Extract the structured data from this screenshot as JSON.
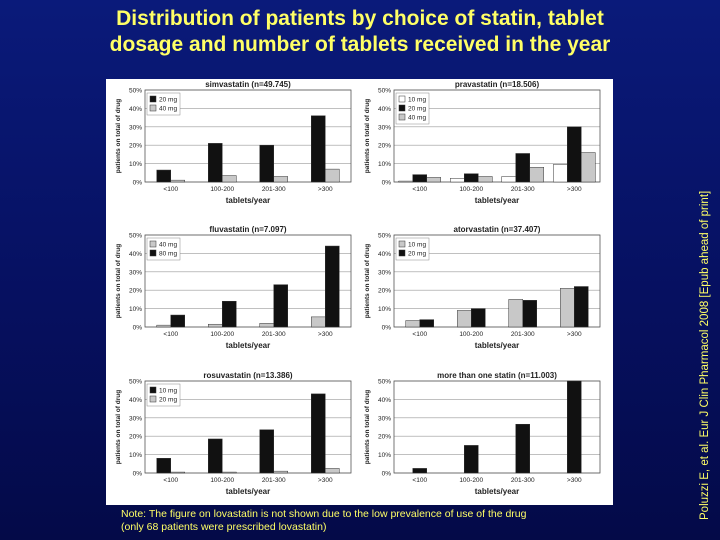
{
  "slide": {
    "title_line1": "Distribution of patients by choice of statin, tablet",
    "title_line2": "dosage and number of tablets received in the year",
    "note_line1": "Note: The figure on lovastatin is not shown due to the low prevalence of use of the drug",
    "note_line2": "(only 68 patients were prescribed lovastatin)",
    "citation": "Poluzzi E, et al. Eur J Clin Pharmacol 2008 [Epub ahead of print]"
  },
  "colors": {
    "background": "#061060",
    "title": "#ffff66",
    "panel": "#ffffff",
    "dose_white": "#ffffff",
    "dose_black": "#111111",
    "dose_gray": "#c8c8c8"
  },
  "chart_data": [
    {
      "type": "bar",
      "title": "simvastatin (n=49.745)",
      "xlabel": "tablets/year",
      "ylabel": "patients on total of drug",
      "categories": [
        "<100",
        "100-200",
        "201-300",
        ">300"
      ],
      "yticks": [
        "0%",
        "10%",
        "20%",
        "30%",
        "40%",
        "50%"
      ],
      "ylim": [
        0,
        50
      ],
      "legend_position": "top-left",
      "series": [
        {
          "name": "20 mg",
          "color": "#111111",
          "values": [
            6.5,
            21,
            20,
            36
          ]
        },
        {
          "name": "40 mg",
          "color": "#c8c8c8",
          "values": [
            1,
            3.5,
            3,
            7
          ]
        }
      ]
    },
    {
      "type": "bar",
      "title": "pravastatin (n=18.506)",
      "xlabel": "tablets/year",
      "ylabel": "patients on total of drug",
      "categories": [
        "<100",
        "100-200",
        "201-300",
        ">300"
      ],
      "yticks": [
        "0%",
        "10%",
        "20%",
        "30%",
        "40%",
        "50%"
      ],
      "ylim": [
        0,
        50
      ],
      "legend_position": "top-left",
      "series": [
        {
          "name": "10 mg",
          "color": "#ffffff",
          "values": [
            0.5,
            2,
            3,
            9.5
          ]
        },
        {
          "name": "20 mg",
          "color": "#111111",
          "values": [
            4,
            4.5,
            15.5,
            30
          ]
        },
        {
          "name": "40 mg",
          "color": "#c8c8c8",
          "values": [
            2.5,
            3,
            8,
            16
          ]
        }
      ]
    },
    {
      "type": "bar",
      "title": "fluvastatin (n=7.097)",
      "xlabel": "tablets/year",
      "ylabel": "patients on total of drug",
      "categories": [
        "<100",
        "100-200",
        "201-300",
        ">300"
      ],
      "yticks": [
        "0%",
        "10%",
        "20%",
        "30%",
        "40%",
        "50%"
      ],
      "ylim": [
        0,
        50
      ],
      "legend_position": "top-left",
      "series": [
        {
          "name": "40 mg",
          "color": "#c8c8c8",
          "values": [
            1,
            1.5,
            2,
            5.5
          ]
        },
        {
          "name": "80 mg",
          "color": "#111111",
          "values": [
            6.5,
            14,
            23,
            44
          ]
        }
      ]
    },
    {
      "type": "bar",
      "title": "atorvastatin (n=37.407)",
      "xlabel": "tablets/year",
      "ylabel": "patients on total of drug",
      "categories": [
        "<100",
        "100-200",
        "201-300",
        ">300"
      ],
      "yticks": [
        "0%",
        "10%",
        "20%",
        "30%",
        "40%",
        "50%"
      ],
      "ylim": [
        0,
        50
      ],
      "legend_position": "top-left",
      "series": [
        {
          "name": "10 mg",
          "color": "#c8c8c8",
          "values": [
            3.5,
            9,
            15,
            21
          ]
        },
        {
          "name": "20 mg",
          "color": "#111111",
          "values": [
            4,
            10,
            14.5,
            22
          ]
        }
      ]
    },
    {
      "type": "bar",
      "title": "rosuvastatin (n=13.386)",
      "xlabel": "tablets/year",
      "ylabel": "patients on total of drug",
      "categories": [
        "<100",
        "100-200",
        "201-300",
        ">300"
      ],
      "yticks": [
        "0%",
        "10%",
        "20%",
        "30%",
        "40%",
        "50%"
      ],
      "ylim": [
        0,
        50
      ],
      "legend_position": "top-left",
      "series": [
        {
          "name": "10 mg",
          "color": "#111111",
          "values": [
            8,
            18.5,
            23.5,
            43
          ]
        },
        {
          "name": "20 mg",
          "color": "#c8c8c8",
          "values": [
            0.5,
            0.5,
            1,
            2.5
          ]
        }
      ]
    },
    {
      "type": "bar",
      "title": "more than one statin (n=11.003)",
      "xlabel": "tablets/year",
      "ylabel": "patients on total of drug",
      "categories": [
        "<100",
        "100-200",
        "201-300",
        ">300"
      ],
      "yticks": [
        "0%",
        "10%",
        "20%",
        "30%",
        "40%",
        "50%"
      ],
      "ylim": [
        0,
        50
      ],
      "legend_position": "none",
      "series": [
        {
          "name": "",
          "color": "#111111",
          "values": [
            2.5,
            15,
            26.5,
            53
          ]
        }
      ]
    }
  ]
}
